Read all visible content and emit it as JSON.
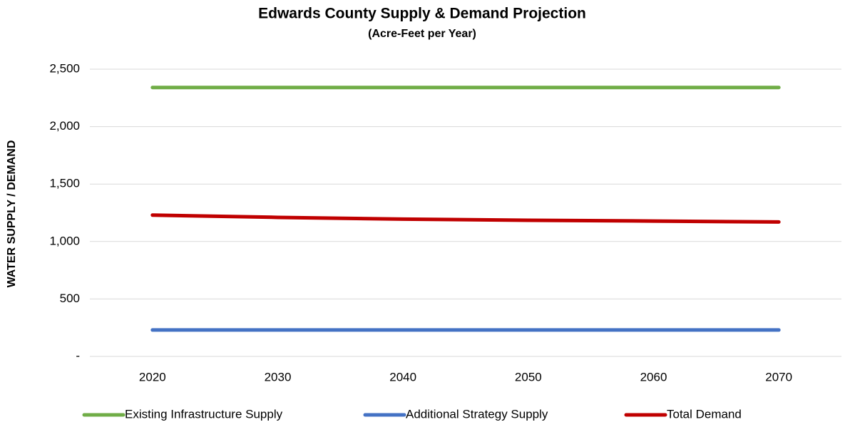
{
  "chart_data": {
    "type": "line",
    "title": "Edwards County Supply & Demand Projection",
    "subtitle": "(Acre-Feet per Year)",
    "y_label": "WATER SUPPLY / DEMAND",
    "categories": [
      "2020",
      "2030",
      "2040",
      "2050",
      "2060",
      "2070"
    ],
    "series": [
      {
        "name": "Existing Infrastructure Supply",
        "color": "#70ad47",
        "values": [
          2340,
          2340,
          2340,
          2340,
          2340,
          2340
        ]
      },
      {
        "name": "Additional Strategy Supply",
        "color": "#4472c4",
        "values": [
          230,
          230,
          230,
          230,
          230,
          230
        ]
      },
      {
        "name": "Total Demand",
        "color": "#c00000",
        "values": [
          1230,
          1210,
          1195,
          1185,
          1178,
          1170
        ]
      }
    ],
    "ylim": [
      0,
      2500
    ],
    "yticks": [
      {
        "value": 0,
        "label": "-"
      },
      500,
      {
        "value": 1000,
        "label": "1,000"
      },
      {
        "value": 1500,
        "label": "1,500"
      },
      {
        "value": 2000,
        "label": "2,000"
      },
      {
        "value": 2500,
        "label": "2,500"
      }
    ],
    "grid": true,
    "legend": "bottom"
  }
}
